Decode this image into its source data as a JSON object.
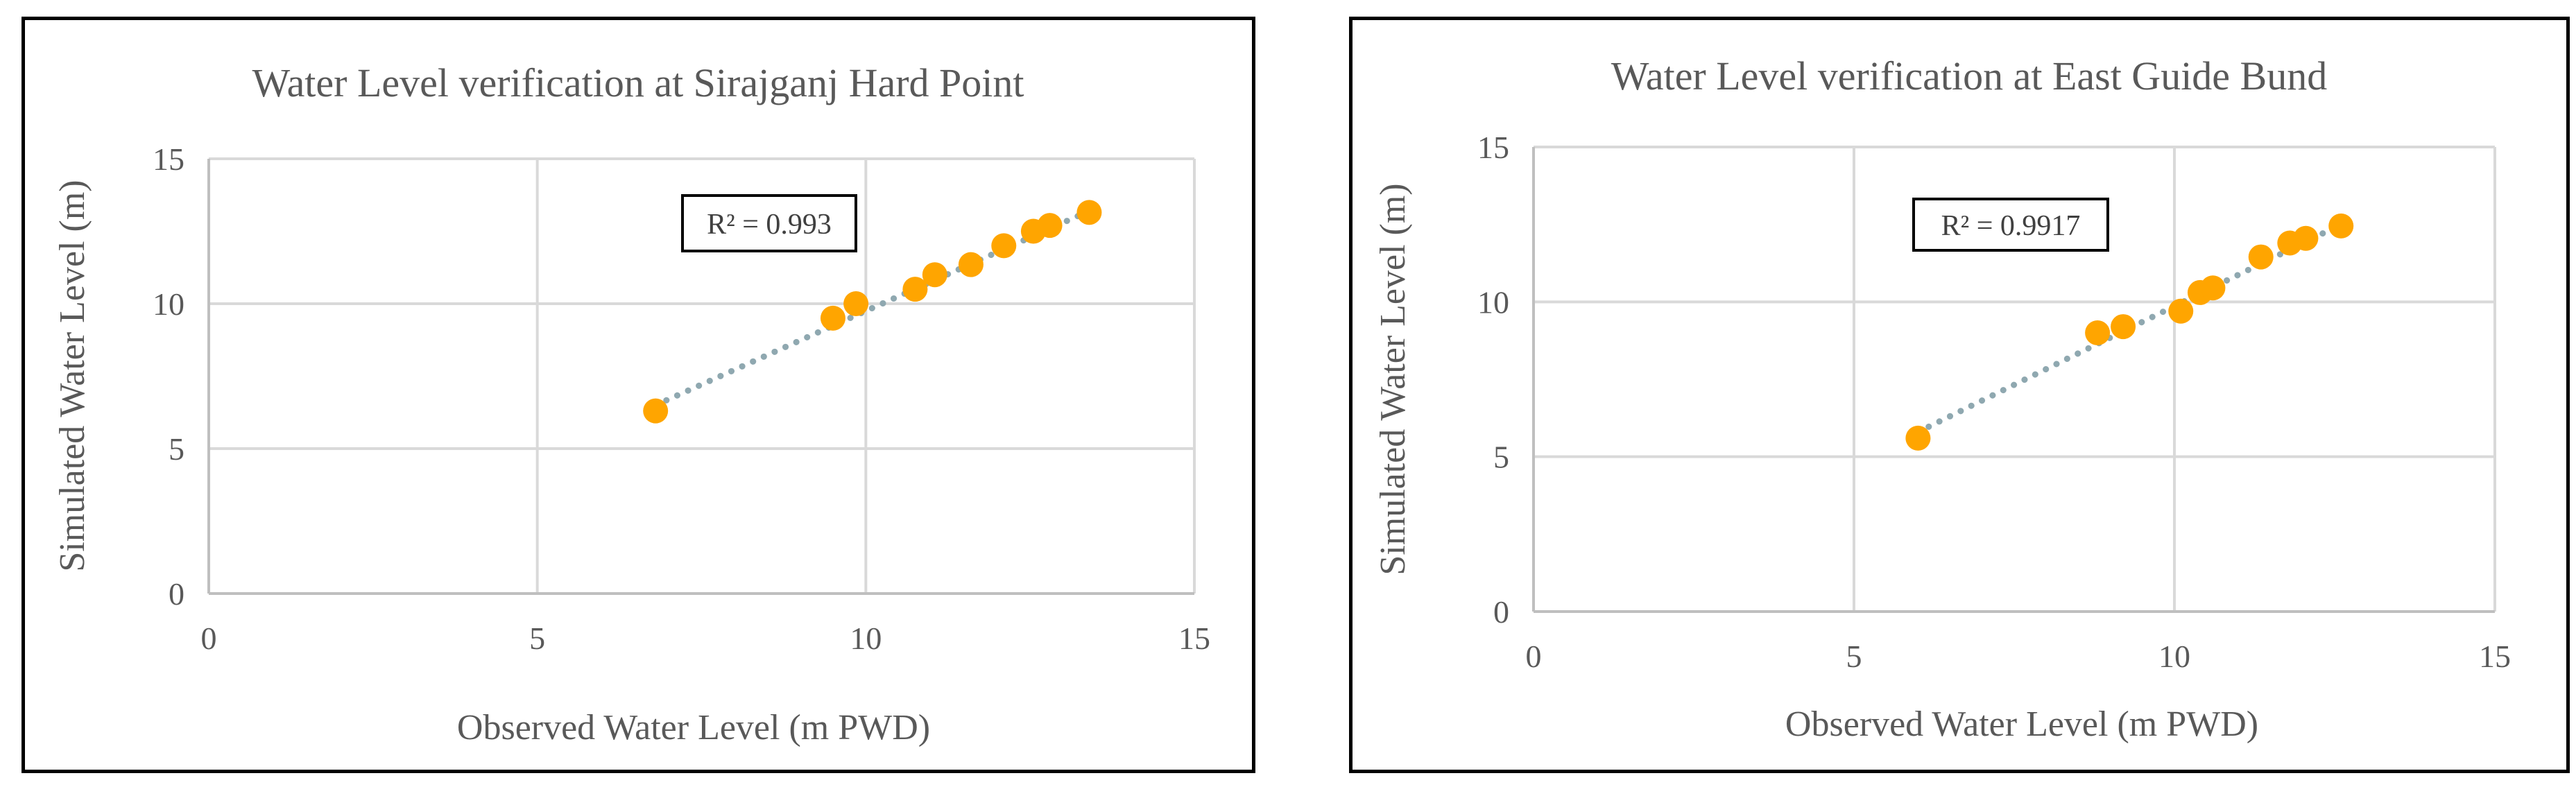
{
  "chart_data": [
    {
      "type": "scatter",
      "title": "Water Level verification at Sirajganj Hard Point",
      "xlabel": "Observed Water Level (m PWD)",
      "ylabel": "Simulated Water Level (m)",
      "xlim": [
        0,
        15
      ],
      "ylim": [
        0,
        15
      ],
      "xticks": [
        0,
        5,
        10,
        15
      ],
      "yticks": [
        0,
        5,
        10,
        15
      ],
      "grid": true,
      "marker_color": "#FFA500",
      "trendline_color": "#8FA8B0",
      "trendline": {
        "type": "linear",
        "x": [
          6.8,
          13.4
        ],
        "y": [
          6.5,
          13.2
        ]
      },
      "r_squared_label": "R² = 0.993",
      "points": [
        {
          "x": 6.8,
          "y": 6.3
        },
        {
          "x": 9.5,
          "y": 9.5
        },
        {
          "x": 9.85,
          "y": 10.0
        },
        {
          "x": 10.75,
          "y": 10.5
        },
        {
          "x": 11.05,
          "y": 11.0
        },
        {
          "x": 11.6,
          "y": 11.35
        },
        {
          "x": 12.1,
          "y": 12.0
        },
        {
          "x": 12.55,
          "y": 12.5
        },
        {
          "x": 12.8,
          "y": 12.7
        },
        {
          "x": 13.4,
          "y": 13.15
        }
      ]
    },
    {
      "type": "scatter",
      "title": "Water Level verification at East Guide Bund",
      "xlabel": "Observed Water Level (m PWD)",
      "ylabel": "Simulated Water Level (m)",
      "xlim": [
        0,
        15
      ],
      "ylim": [
        0,
        15
      ],
      "xticks": [
        0,
        5,
        10,
        15
      ],
      "yticks": [
        0,
        5,
        10,
        15
      ],
      "grid": true,
      "marker_color": "#FFA500",
      "trendline_color": "#8FA8B0",
      "trendline": {
        "type": "linear",
        "x": [
          6.0,
          12.6
        ],
        "y": [
          5.8,
          12.5
        ]
      },
      "r_squared_label": "R² = 0.9917",
      "points": [
        {
          "x": 6.0,
          "y": 5.6
        },
        {
          "x": 8.8,
          "y": 9.0
        },
        {
          "x": 9.2,
          "y": 9.2
        },
        {
          "x": 10.1,
          "y": 9.7
        },
        {
          "x": 10.4,
          "y": 10.3
        },
        {
          "x": 10.6,
          "y": 10.45
        },
        {
          "x": 11.35,
          "y": 11.45
        },
        {
          "x": 11.8,
          "y": 11.9
        },
        {
          "x": 12.05,
          "y": 12.05
        },
        {
          "x": 12.6,
          "y": 12.45
        }
      ]
    }
  ]
}
